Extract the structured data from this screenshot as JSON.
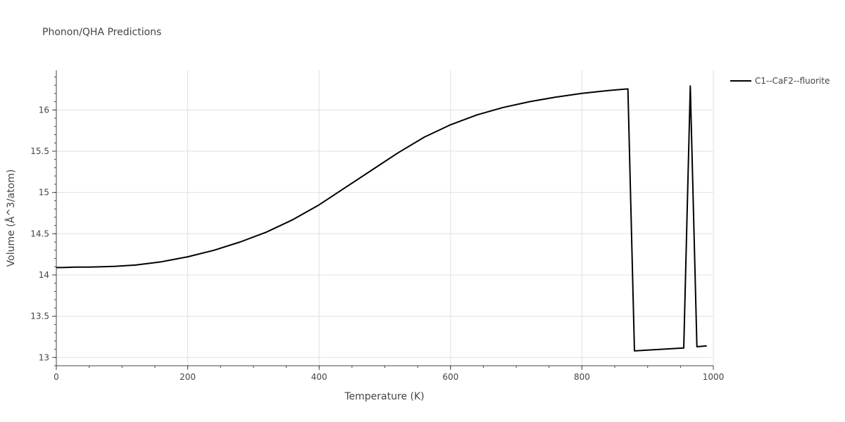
{
  "chart_data": {
    "type": "line",
    "title": "Phonon/QHA Predictions",
    "xlabel": "Temperature (K)",
    "ylabel": "Volume (Å^3/atom)",
    "xlim": [
      0,
      1000
    ],
    "ylim": [
      12.9,
      16.48
    ],
    "xticks": [
      0,
      200,
      400,
      600,
      800,
      1000
    ],
    "yticks": [
      13,
      13.5,
      14,
      14.5,
      15,
      15.5,
      16
    ],
    "grid": true,
    "legend_position": "top-right",
    "line_color": "#000000",
    "series": [
      {
        "name": "C1--CaF2--fluorite",
        "x": [
          0,
          10,
          30,
          50,
          70,
          90,
          120,
          160,
          200,
          240,
          280,
          320,
          360,
          400,
          440,
          480,
          520,
          560,
          600,
          640,
          680,
          720,
          760,
          800,
          840,
          870,
          880,
          955,
          965,
          975,
          990
        ],
        "y": [
          14.09,
          14.09,
          14.095,
          14.095,
          14.1,
          14.105,
          14.12,
          14.16,
          14.22,
          14.3,
          14.4,
          14.52,
          14.67,
          14.85,
          15.06,
          15.27,
          15.48,
          15.67,
          15.82,
          15.94,
          16.03,
          16.1,
          16.155,
          16.2,
          16.235,
          16.255,
          13.08,
          13.115,
          16.29,
          13.13,
          13.14
        ]
      }
    ]
  }
}
